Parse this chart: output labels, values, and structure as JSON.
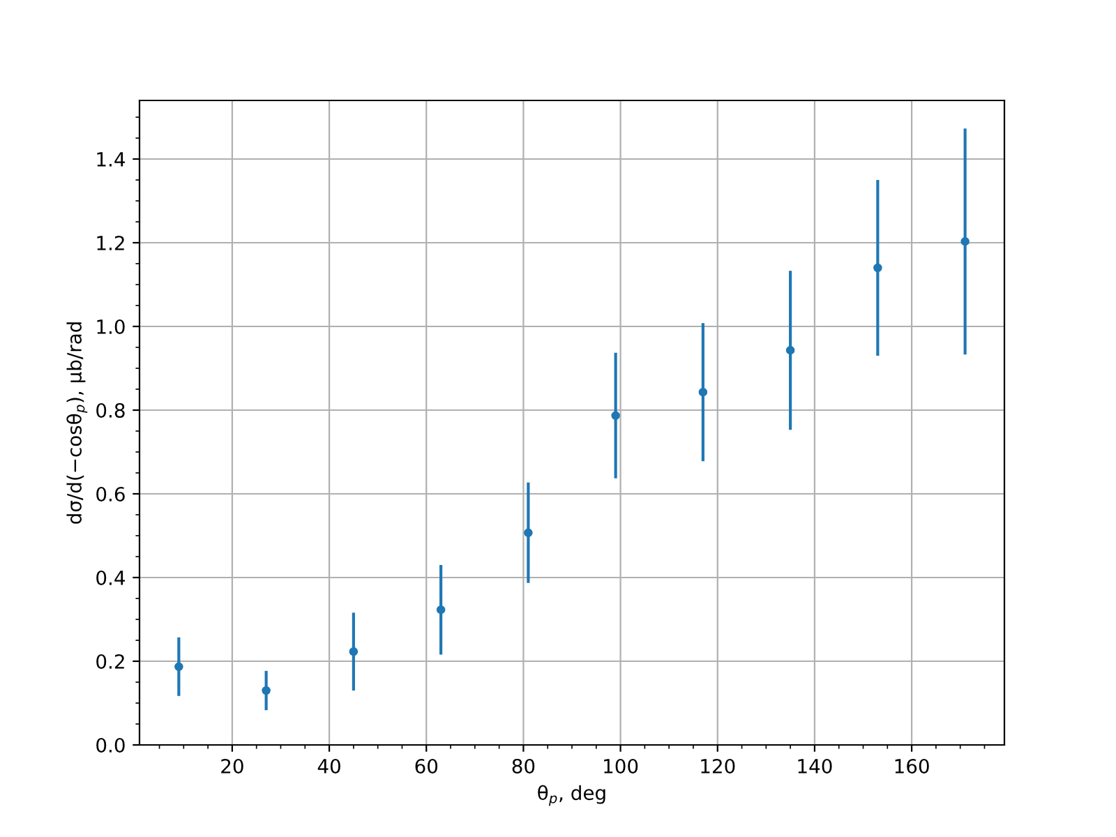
{
  "chart_data": {
    "type": "scatter",
    "xlabel": "θ$_{p}$, deg",
    "ylabel": "dσ/d(−cosθ$_{p}$), μb/rad",
    "x": [
      9,
      27,
      45,
      63,
      81,
      99,
      117,
      135,
      153,
      171
    ],
    "series": [
      {
        "color": "#1f77b4",
        "values": [
          0.187,
          0.13,
          0.223,
          0.323,
          0.507,
          0.787,
          0.843,
          0.943,
          1.14,
          1.203
        ],
        "errors": [
          0.07,
          0.047,
          0.093,
          0.107,
          0.12,
          0.15,
          0.165,
          0.19,
          0.21,
          0.27
        ]
      }
    ],
    "marker": "circle",
    "xlim": [
      0.9,
      179.1
    ],
    "ylim": [
      0,
      1.54
    ],
    "xticks": [
      20,
      40,
      60,
      80,
      100,
      120,
      140,
      160,
      {
        "value": 5,
        "label": null
      },
      {
        "value": 10,
        "label": null
      },
      {
        "value": 15,
        "label": null
      },
      {
        "value": 25,
        "label": null
      },
      {
        "value": 30,
        "label": null
      },
      {
        "value": 35,
        "label": null
      },
      {
        "value": 45,
        "label": null
      },
      {
        "value": 50,
        "label": null
      },
      {
        "value": 55,
        "label": null
      },
      {
        "value": 65,
        "label": null
      },
      {
        "value": 70,
        "label": null
      },
      {
        "value": 75,
        "label": null
      },
      {
        "value": 85,
        "label": null
      },
      {
        "value": 90,
        "label": null
      },
      {
        "value": 95,
        "label": null
      },
      {
        "value": 105,
        "label": null
      },
      {
        "value": 110,
        "label": null
      },
      {
        "value": 115,
        "label": null
      },
      {
        "value": 125,
        "label": null
      },
      {
        "value": 130,
        "label": null
      },
      {
        "value": 135,
        "label": null
      },
      {
        "value": 145,
        "label": null
      },
      {
        "value": 150,
        "label": null
      },
      {
        "value": 155,
        "label": null
      },
      {
        "value": 165,
        "label": null
      },
      {
        "value": 170,
        "label": null
      },
      {
        "value": 175,
        "label": null
      }
    ],
    "yticks": [
      {
        "value": 0,
        "label": "0.0"
      },
      {
        "value": 0.2,
        "label": "0.2"
      },
      {
        "value": 0.4,
        "label": "0.4"
      },
      {
        "value": 0.6,
        "label": "0.6"
      },
      {
        "value": 0.8,
        "label": "0.8"
      },
      {
        "value": 1.0,
        "label": "1.0"
      },
      {
        "value": 1.2,
        "label": "1.2"
      },
      {
        "value": 1.4,
        "label": "1.4"
      },
      {
        "value": 0.05,
        "label": null
      },
      {
        "value": 0.1,
        "label": null
      },
      {
        "value": 0.15,
        "label": null
      },
      {
        "value": 0.25,
        "label": null
      },
      {
        "value": 0.3,
        "label": null
      },
      {
        "value": 0.35,
        "label": null
      },
      {
        "value": 0.45,
        "label": null
      },
      {
        "value": 0.5,
        "label": null
      },
      {
        "value": 0.55,
        "label": null
      },
      {
        "value": 0.65,
        "label": null
      },
      {
        "value": 0.7,
        "label": null
      },
      {
        "value": 0.75,
        "label": null
      },
      {
        "value": 0.85,
        "label": null
      },
      {
        "value": 0.9,
        "label": null
      },
      {
        "value": 0.95,
        "label": null
      },
      {
        "value": 1.05,
        "label": null
      },
      {
        "value": 1.1,
        "label": null
      },
      {
        "value": 1.15,
        "label": null
      },
      {
        "value": 1.25,
        "label": null
      },
      {
        "value": 1.3,
        "label": null
      },
      {
        "value": 1.35,
        "label": null
      },
      {
        "value": 1.45,
        "label": null
      },
      {
        "value": 1.5,
        "label": null
      }
    ],
    "grid": true
  }
}
